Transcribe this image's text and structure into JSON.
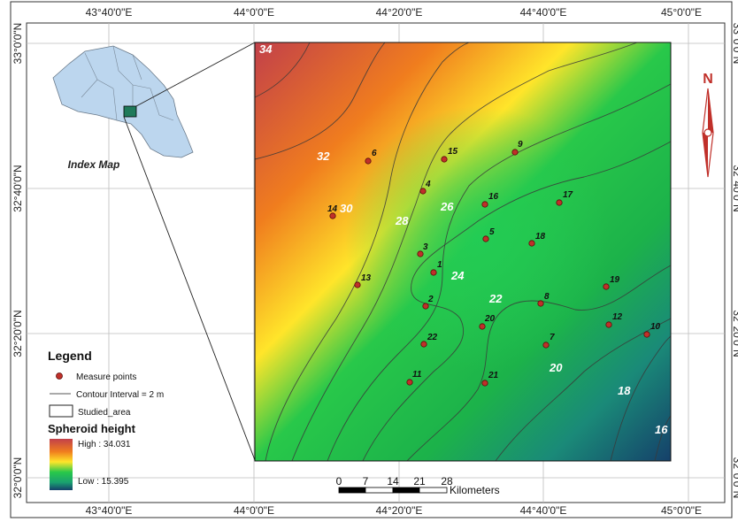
{
  "top_coordinates": [
    "43°40'0\"E",
    "44°0'0\"E",
    "44°20'0\"E",
    "44°40'0\"E",
    "45°0'0\"E"
  ],
  "bottom_coordinates": [
    "43°40'0\"E",
    "44°0'0\"E",
    "44°20'0\"E",
    "44°40'0\"E",
    "45°0'0\"E"
  ],
  "left_coordinates": [
    "33°0'0\"N",
    "32°40'0\"N",
    "32°20'0\"N",
    "32°0'0\"N"
  ],
  "index_map": {
    "title": "Index Map"
  },
  "north_arrow": {
    "label": "N"
  },
  "legend": {
    "title": "Legend",
    "measure_points": "Measure points",
    "contour": "Contour Interval = 2 m",
    "studied_area": "Studied_area",
    "ramp_title": "Spheroid height",
    "high": "High : 34.031",
    "low": "Low : 15.395",
    "ramp_colors": [
      "#c2404a",
      "#f07d1e",
      "#ffe52a",
      "#28c84a",
      "#1aa070",
      "#15406a"
    ]
  },
  "scale_bar": {
    "ticks": [
      "0",
      "7",
      "14",
      "21",
      "28"
    ],
    "unit": "Kilometers"
  },
  "contour_labels": [
    "34",
    "32",
    "30",
    "28",
    "26",
    "24",
    "22",
    "20",
    "18",
    "16"
  ],
  "measure_points": [
    "1",
    "2",
    "3",
    "4",
    "5",
    "6",
    "7",
    "8",
    "9",
    "10",
    "11",
    "12",
    "13",
    "14",
    "15",
    "16",
    "17",
    "18",
    "19",
    "20",
    "21",
    "22"
  ]
}
